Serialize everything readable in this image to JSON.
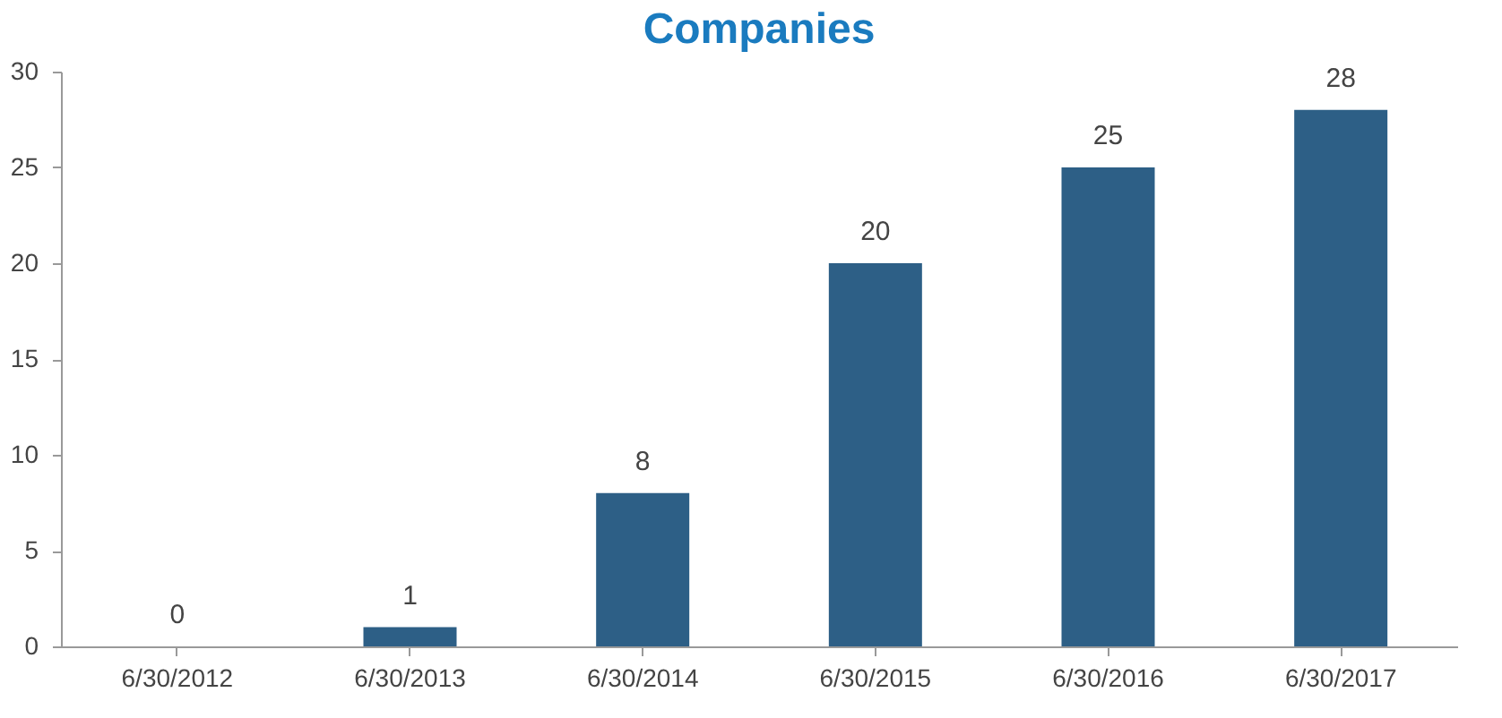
{
  "chart_data": {
    "type": "bar",
    "title": "Companies",
    "categories": [
      "6/30/2012",
      "6/30/2013",
      "6/30/2014",
      "6/30/2015",
      "6/30/2016",
      "6/30/2017"
    ],
    "values": [
      0,
      1,
      8,
      20,
      25,
      28
    ],
    "color": "#2d5f86",
    "ylim": [
      0,
      30
    ],
    "yticks": [
      0,
      5,
      10,
      15,
      20,
      25,
      30
    ],
    "grid": false,
    "data_labels": true
  }
}
